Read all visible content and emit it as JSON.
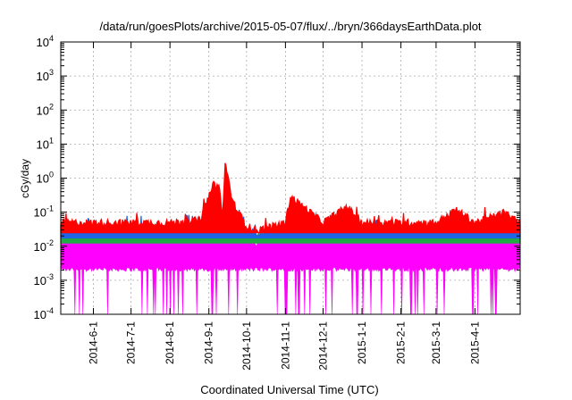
{
  "chart_data": {
    "type": "line",
    "title": "/data/run/goesPlots/archive/2015-05-07/flux/../bryn/366daysEarthData.plot",
    "xlabel": "Coordinated Universal Time (UTC)",
    "ylabel": "cGy/day",
    "y_scale": "log",
    "ylim": [
      0.0001,
      10000
    ],
    "xlim": [
      "2014-05-06",
      "2015-05-07"
    ],
    "grid": true,
    "legend": "none",
    "x_ticks": [
      "2014-6-1",
      "2014-7-1",
      "2014-8-1",
      "2014-9-1",
      "2014-10-1",
      "2014-11-1",
      "2014-12-1",
      "2015-1-1",
      "2015-2-1",
      "2015-3-1",
      "2015-4-1"
    ],
    "y_ticks": [
      {
        "base": "10",
        "exp": "-4"
      },
      {
        "base": "10",
        "exp": "-3"
      },
      {
        "base": "10",
        "exp": "-2"
      },
      {
        "base": "10",
        "exp": "-1"
      },
      {
        "base": "10",
        "exp": "0"
      },
      {
        "base": "10",
        "exp": "1"
      },
      {
        "base": "10",
        "exp": "2"
      },
      {
        "base": "10",
        "exp": "3"
      },
      {
        "base": "10",
        "exp": "4"
      }
    ],
    "series": [
      {
        "color": "#ff0000",
        "x": [
          "2014-05-06",
          "2014-06-01",
          "2014-07-01",
          "2014-08-01",
          "2014-08-25",
          "2014-09-05",
          "2014-09-09",
          "2014-09-12",
          "2014-09-14",
          "2014-09-20",
          "2014-10-01",
          "2014-10-10",
          "2014-11-01",
          "2014-11-05",
          "2014-12-01",
          "2014-12-20",
          "2015-01-01",
          "2015-02-01",
          "2015-03-01",
          "2015-03-17",
          "2015-04-01",
          "2015-04-24",
          "2015-05-07"
        ],
        "values": [
          0.05,
          0.05,
          0.05,
          0.05,
          0.06,
          0.7,
          0.6,
          0.08,
          3.0,
          0.2,
          0.04,
          0.03,
          0.05,
          0.3,
          0.05,
          0.15,
          0.05,
          0.05,
          0.05,
          0.12,
          0.05,
          0.1,
          0.05
        ]
      },
      {
        "color": "#1e64e6",
        "x": [
          "2014-05-06",
          "2014-06-01",
          "2014-07-01",
          "2014-08-01",
          "2014-08-25",
          "2014-09-05",
          "2014-09-09",
          "2014-09-12",
          "2014-09-14",
          "2014-09-20",
          "2014-10-01",
          "2014-10-10",
          "2014-11-01",
          "2014-11-05",
          "2014-12-01",
          "2014-12-20",
          "2015-01-01",
          "2015-02-01",
          "2015-03-01",
          "2015-03-17",
          "2015-04-01",
          "2015-04-24",
          "2015-05-07"
        ],
        "values": [
          0.035,
          0.035,
          0.035,
          0.035,
          0.04,
          0.5,
          0.45,
          0.06,
          2.0,
          0.12,
          0.03,
          0.022,
          0.035,
          0.15,
          0.035,
          0.08,
          0.035,
          0.035,
          0.035,
          0.07,
          0.035,
          0.06,
          0.035
        ]
      },
      {
        "color": "#22aa44",
        "x": [
          "2014-05-06",
          "2014-06-01",
          "2014-07-01",
          "2014-08-01",
          "2014-08-25",
          "2014-09-05",
          "2014-09-09",
          "2014-09-12",
          "2014-09-14",
          "2014-09-20",
          "2014-10-01",
          "2014-10-10",
          "2014-11-01",
          "2014-11-05",
          "2014-12-01",
          "2014-12-20",
          "2015-01-01",
          "2015-02-01",
          "2015-03-01",
          "2015-03-17",
          "2015-04-01",
          "2015-04-24",
          "2015-05-07"
        ],
        "values": [
          0.025,
          0.025,
          0.025,
          0.025,
          0.028,
          0.2,
          0.18,
          0.04,
          0.5,
          0.06,
          0.022,
          0.018,
          0.025,
          0.06,
          0.025,
          0.04,
          0.025,
          0.025,
          0.025,
          0.035,
          0.025,
          0.03,
          0.025
        ]
      },
      {
        "color": "#ff00ff",
        "x": [
          "2014-05-06",
          "2014-06-01",
          "2014-07-01",
          "2014-08-01",
          "2014-08-25",
          "2014-09-05",
          "2014-09-09",
          "2014-09-12",
          "2014-09-14",
          "2014-09-20",
          "2014-10-01",
          "2014-10-10",
          "2014-11-01",
          "2014-11-05",
          "2014-12-01",
          "2014-12-20",
          "2015-01-01",
          "2015-02-01",
          "2015-03-01",
          "2015-03-17",
          "2015-04-01",
          "2015-04-24",
          "2015-05-07"
        ],
        "values": [
          0.02,
          0.02,
          0.02,
          0.02,
          0.02,
          0.15,
          0.12,
          0.02,
          0.2,
          0.03,
          0.015,
          0.012,
          0.02,
          0.025,
          0.02,
          0.025,
          0.02,
          0.02,
          0.02,
          0.022,
          0.02,
          0.022,
          0.02
        ],
        "min_range": [
          0.0001,
          0.002
        ]
      }
    ]
  }
}
